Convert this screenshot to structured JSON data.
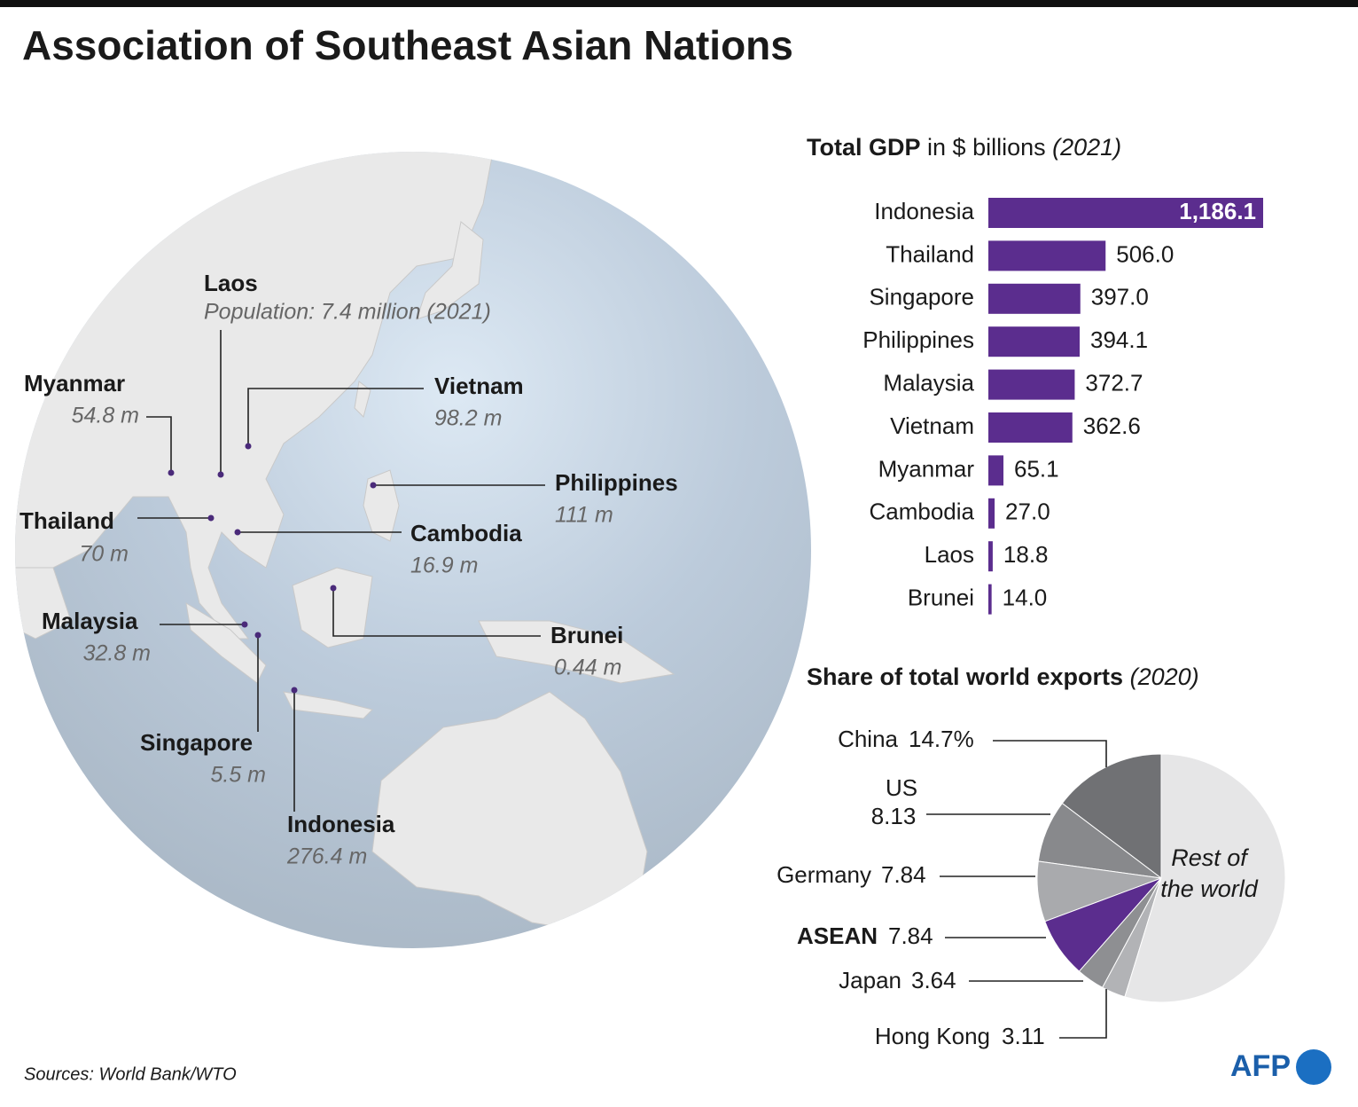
{
  "title": "Association of Southeast Asian Nations",
  "map": {
    "countries": [
      {
        "name": "Laos",
        "population": "Population: 7.4 million (2021)"
      },
      {
        "name": "Myanmar",
        "population": "54.8 m"
      },
      {
        "name": "Vietnam",
        "population": "98.2 m"
      },
      {
        "name": "Philippines",
        "population": "111 m"
      },
      {
        "name": "Thailand",
        "population": "70 m"
      },
      {
        "name": "Cambodia",
        "population": "16.9 m"
      },
      {
        "name": "Brunei",
        "population": "0.44 m"
      },
      {
        "name": "Malaysia",
        "population": "32.8 m"
      },
      {
        "name": "Singapore",
        "population": "5.5 m"
      },
      {
        "name": "Indonesia",
        "population": "276.4 m"
      }
    ]
  },
  "chart_data": [
    {
      "type": "hbar",
      "title": "Total GDP",
      "unit": "in $ billions",
      "date": "(2021)",
      "categories": [
        "Indonesia",
        "Thailand",
        "Singapore",
        "Philippines",
        "Malaysia",
        "Vietnam",
        "Myanmar",
        "Cambodia",
        "Laos",
        "Brunei"
      ],
      "values": [
        1186.1,
        506.0,
        397.0,
        394.1,
        372.7,
        362.6,
        65.1,
        27.0,
        18.8,
        14.0
      ],
      "value_labels": [
        "1,186.1",
        "506.0",
        "397.0",
        "394.1",
        "372.7",
        "362.6",
        "65.1",
        "27.0",
        "18.8",
        "14.0"
      ],
      "color": "#5b2d8e"
    },
    {
      "type": "pie",
      "title": "Share of total world exports",
      "date": "(2020)",
      "categories": [
        "China",
        "US",
        "Germany",
        "ASEAN",
        "Japan",
        "Hong Kong",
        "Rest of the world"
      ],
      "values": [
        14.7,
        8.13,
        7.84,
        7.84,
        3.64,
        3.11,
        54.74
      ],
      "value_labels": [
        "14.7%",
        "8.13",
        "7.84",
        "7.84",
        "3.64",
        "3.11",
        null
      ],
      "colors": [
        "#707174",
        "#88898c",
        "#a9aaad",
        "#5b2d8e",
        "#8e8f92",
        "#b2b3b6",
        "#e6e6e7"
      ]
    }
  ],
  "source": "Sources: World Bank/WTO",
  "logo": "AFP"
}
